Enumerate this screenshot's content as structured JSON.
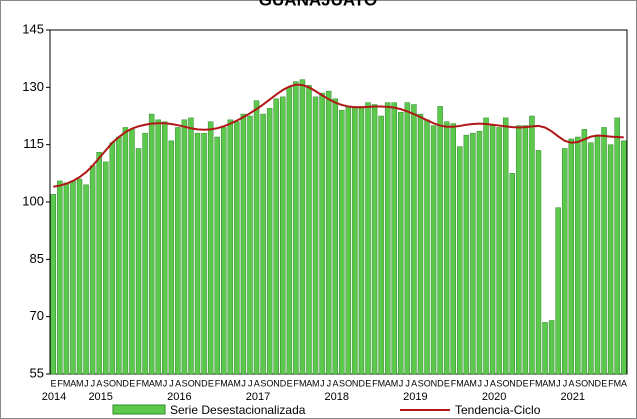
{
  "chart_data": {
    "type": "bar_line",
    "title": "GUANAJUATO",
    "categories": [
      "E",
      "F",
      "M",
      "A",
      "M",
      "J",
      "J",
      "A",
      "S",
      "O",
      "N",
      "D",
      "E",
      "F",
      "M",
      "A",
      "M",
      "J",
      "J",
      "A",
      "S",
      "O",
      "N",
      "D",
      "E",
      "F",
      "M",
      "A",
      "M",
      "J",
      "J",
      "A",
      "S",
      "O",
      "N",
      "D",
      "E",
      "F",
      "M",
      "A",
      "M",
      "J",
      "J",
      "A",
      "S",
      "O",
      "N",
      "D",
      "E",
      "F",
      "M",
      "A",
      "M",
      "J",
      "J",
      "A",
      "S",
      "O",
      "N",
      "D",
      "E",
      "F",
      "M",
      "A",
      "M",
      "J",
      "J",
      "A",
      "S",
      "O",
      "N",
      "D",
      "E",
      "F",
      "M",
      "A",
      "M",
      "J",
      "J",
      "A",
      "S",
      "O",
      "N",
      "D",
      "E",
      "F",
      "M",
      "A"
    ],
    "year_labels": [
      "2014",
      "2015",
      "2016",
      "2017",
      "2018",
      "2019",
      "2020",
      "2021"
    ],
    "series": [
      {
        "name": "Serie Desestacionalizada",
        "color": "#5cc84c",
        "kind": "bar",
        "values": [
          102,
          105.5,
          105,
          105.5,
          106,
          104.5,
          109.5,
          113,
          110.5,
          115.5,
          117,
          119.5,
          119,
          114,
          118,
          123,
          121.5,
          121,
          116,
          119.5,
          121.5,
          122,
          118,
          118,
          121,
          117,
          119.5,
          121.5,
          121,
          123,
          122.5,
          126.5,
          123,
          124.5,
          127,
          127.5,
          130,
          131.5,
          132,
          130.5,
          127.5,
          128.5,
          129,
          127,
          124,
          125,
          125,
          125,
          126,
          125.5,
          122.5,
          126,
          126,
          123.5,
          126,
          125.5,
          123,
          121.5,
          120,
          125,
          121,
          120.5,
          114.5,
          117.5,
          118,
          118.5,
          122,
          120,
          119.5,
          122,
          107.5,
          120,
          120,
          122.5,
          113.5,
          68.5,
          69,
          98.5,
          114,
          116.5,
          117,
          119,
          115.5,
          117.5,
          119.5,
          115,
          122,
          116
        ]
      },
      {
        "name": "Tendencia-Ciclo",
        "color": "#b01818",
        "kind": "line",
        "values": [
          104,
          104.3,
          104.8,
          105.5,
          106.5,
          107.8,
          109.5,
          111.5,
          113.5,
          115.5,
          117,
          118.3,
          119.2,
          119.8,
          120.2,
          120.5,
          120.6,
          120.6,
          120.4,
          120.1,
          119.7,
          119.3,
          119,
          118.9,
          119,
          119.3,
          119.8,
          120.5,
          121.3,
          122.2,
          123.2,
          124.3,
          125.5,
          126.8,
          128.1,
          129.3,
          130.2,
          130.7,
          130.6,
          130,
          129,
          127.9,
          126.9,
          126,
          125.4,
          125,
          124.8,
          124.8,
          124.9,
          125,
          125,
          124.9,
          124.7,
          124.3,
          123.7,
          123,
          122.2,
          121.4,
          120.6,
          120,
          119.7,
          119.7,
          119.9,
          120.2,
          120.4,
          120.5,
          120.4,
          120.2,
          120,
          119.8,
          119.6,
          119.5,
          119.6,
          119.8,
          119.9,
          119.5,
          118.5,
          117.2,
          116,
          115.5,
          115.7,
          116.4,
          117.1,
          117.4,
          117.3,
          117.1,
          117,
          116.9
        ]
      }
    ],
    "ylim": [
      55,
      145
    ],
    "yticks": [
      55,
      70,
      85,
      100,
      115,
      130,
      145
    ],
    "grid": false
  }
}
